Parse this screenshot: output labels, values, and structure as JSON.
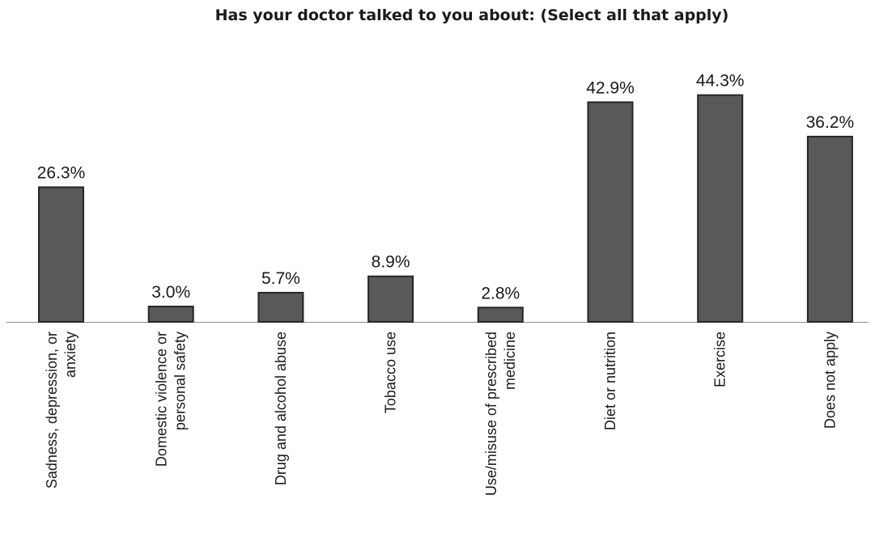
{
  "chart_data": {
    "type": "bar",
    "title": "Has your doctor talked to you about:  (Select all that apply)",
    "xlabel": "",
    "ylabel": "",
    "categories": [
      "Sadness, depression, or anxiety",
      "Domestic violence or personal safety",
      "Drug and alcohol abuse",
      "Tobacco use",
      "Use/misuse of prescribed medicine",
      "Diet or nutrition",
      "Exercise",
      "Does not apply"
    ],
    "category_lines": [
      [
        "Sadness, depression, or",
        "anxiety"
      ],
      [
        "Domestic violence or",
        "personal safety"
      ],
      [
        "Drug and alcohol abuse"
      ],
      [
        "Tobacco use"
      ],
      [
        "Use/misuse of prescribed",
        "medicine"
      ],
      [
        "Diet or nutrition"
      ],
      [
        "Exercise"
      ],
      [
        "Does not apply"
      ]
    ],
    "values": [
      26.3,
      3.0,
      5.7,
      8.9,
      2.8,
      42.9,
      44.3,
      36.2
    ],
    "data_labels": [
      "26.3%",
      "3.0%",
      "5.7%",
      "8.9%",
      "2.8%",
      "42.9%",
      "44.3%",
      "36.2%"
    ],
    "ylim": [
      0,
      50
    ],
    "grid": false,
    "legend": "none",
    "bar_color": "#595959",
    "bar_edge_color": "#262626"
  }
}
